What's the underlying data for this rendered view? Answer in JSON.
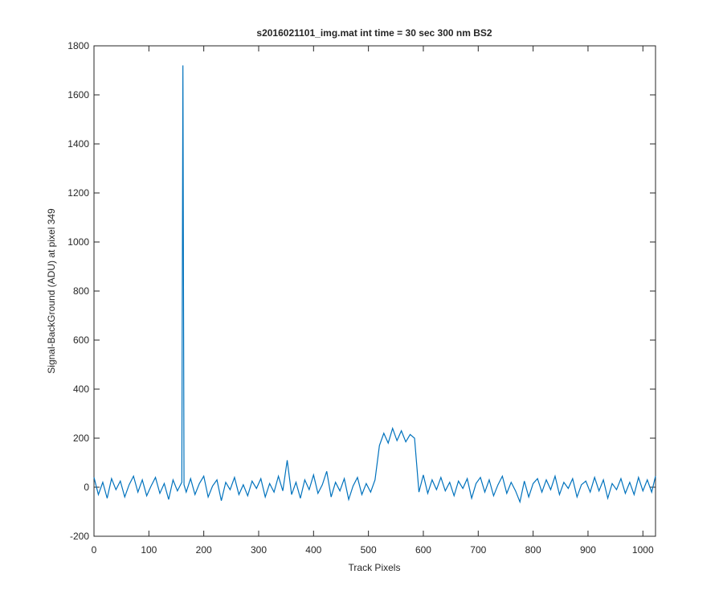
{
  "chart_data": {
    "type": "line",
    "title": "s2016021101_img.mat int time = 30 sec  300 nm BS2",
    "x_label": "Track Pixels",
    "y_label": "Signal-BackGround (ADU) at pixel 349",
    "color": "#0072bd",
    "x": [
      0,
      8,
      16,
      24,
      32,
      40,
      48,
      56,
      64,
      72,
      80,
      88,
      96,
      104,
      112,
      120,
      128,
      136,
      144,
      152,
      160,
      162,
      164,
      168,
      176,
      184,
      192,
      200,
      208,
      216,
      224,
      232,
      240,
      248,
      256,
      264,
      272,
      280,
      288,
      296,
      304,
      312,
      320,
      328,
      336,
      344,
      352,
      360,
      368,
      376,
      384,
      392,
      400,
      408,
      416,
      424,
      432,
      440,
      448,
      456,
      464,
      472,
      480,
      488,
      496,
      504,
      512,
      520,
      528,
      536,
      544,
      552,
      560,
      568,
      576,
      584,
      592,
      600,
      608,
      616,
      624,
      632,
      640,
      648,
      656,
      664,
      672,
      680,
      688,
      696,
      704,
      712,
      720,
      728,
      736,
      744,
      752,
      760,
      768,
      776,
      784,
      792,
      800,
      808,
      816,
      824,
      832,
      840,
      848,
      856,
      864,
      872,
      880,
      888,
      896,
      904,
      912,
      920,
      928,
      936,
      944,
      952,
      960,
      968,
      976,
      984,
      992,
      1000,
      1008,
      1016,
      1023
    ],
    "values": [
      40,
      -30,
      20,
      -45,
      35,
      -10,
      25,
      -40,
      10,
      45,
      -20,
      30,
      -35,
      5,
      40,
      -25,
      15,
      -50,
      30,
      -15,
      20,
      1720,
      10,
      -20,
      35,
      -30,
      15,
      45,
      -40,
      5,
      30,
      -55,
      20,
      -10,
      40,
      -30,
      10,
      -35,
      25,
      -5,
      35,
      -40,
      15,
      -20,
      45,
      -15,
      110,
      -30,
      20,
      -45,
      30,
      -10,
      50,
      -25,
      10,
      65,
      -40,
      20,
      -15,
      35,
      -50,
      5,
      40,
      -30,
      15,
      -20,
      30,
      170,
      220,
      180,
      240,
      190,
      230,
      185,
      215,
      200,
      -20,
      50,
      -25,
      30,
      -10,
      40,
      -15,
      20,
      -35,
      25,
      -5,
      35,
      -45,
      15,
      40,
      -20,
      30,
      -35,
      10,
      45,
      -25,
      20,
      -15,
      -60,
      25,
      -40,
      15,
      35,
      -20,
      30,
      -10,
      45,
      -30,
      20,
      -5,
      35,
      -40,
      10,
      25,
      -20,
      40,
      -15,
      30,
      -45,
      15,
      -10,
      35,
      -25,
      20,
      -30,
      40,
      -15,
      30,
      -20,
      45
    ],
    "xlim": [
      0,
      1023
    ],
    "ylim": [
      -200,
      1800
    ],
    "xticks": [
      0,
      100,
      200,
      300,
      400,
      500,
      600,
      700,
      800,
      900,
      1000
    ],
    "yticks": [
      -200,
      0,
      200,
      400,
      600,
      800,
      1000,
      1200,
      1400,
      1600,
      1800
    ]
  }
}
